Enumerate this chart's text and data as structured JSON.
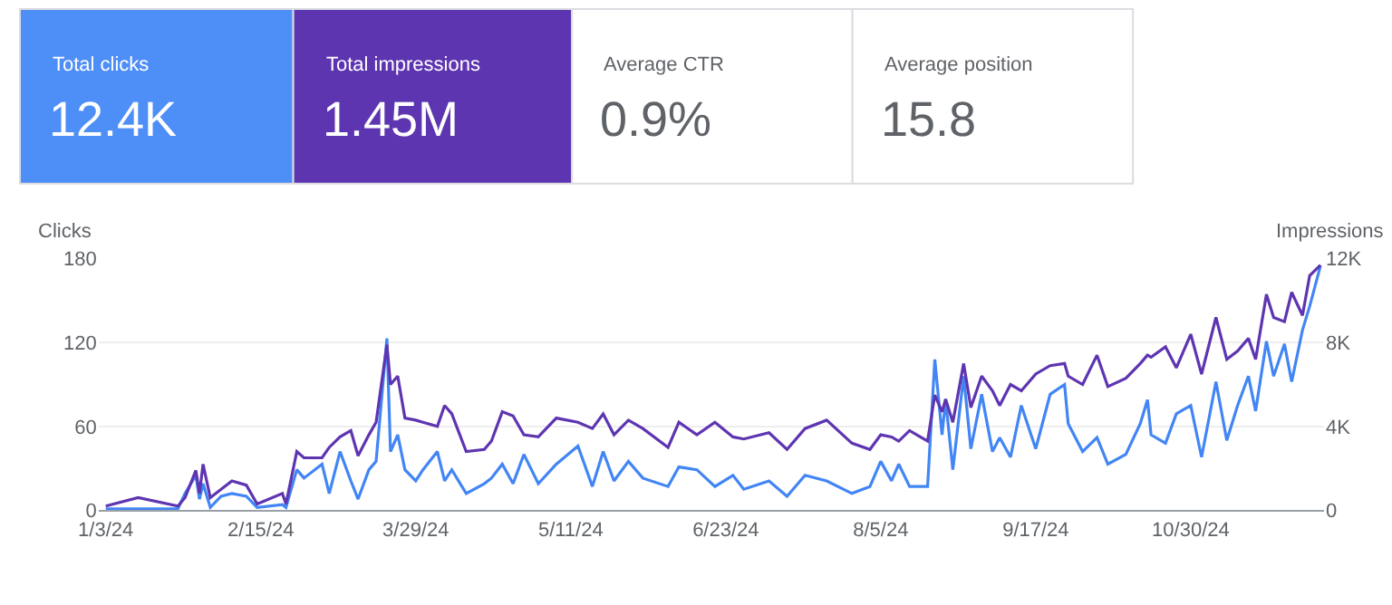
{
  "chart_data": [
    {
      "type": "other",
      "annotations": [
        "Total clicks",
        "12.4K",
        "Total impressions",
        "1.45M",
        "Average CTR",
        "0.9%",
        "Average position",
        "15.8"
      ]
    },
    {
      "type": "line",
      "ylabel": "Clicks",
      "y2label": "Impressions",
      "x": [
        "2024-01-03",
        "2024-01-12",
        "2024-01-23",
        "2024-01-25",
        "2024-01-28",
        "2024-01-29",
        "2024-01-30",
        "2024-02-01",
        "2024-02-04",
        "2024-02-07",
        "2024-02-11",
        "2024-02-14",
        "2024-02-21",
        "2024-02-22",
        "2024-02-25",
        "2024-02-27",
        "2024-03-03",
        "2024-03-05",
        "2024-03-08",
        "2024-03-11",
        "2024-03-13",
        "2024-03-16",
        "2024-03-18",
        "2024-03-21",
        "2024-03-22",
        "2024-03-24",
        "2024-03-26",
        "2024-03-29",
        "2024-03-31",
        "2024-04-04",
        "2024-04-06",
        "2024-04-08",
        "2024-04-12",
        "2024-04-17",
        "2024-04-19",
        "2024-04-22",
        "2024-04-25",
        "2024-04-28",
        "2024-05-02",
        "2024-05-07",
        "2024-05-13",
        "2024-05-17",
        "2024-05-20",
        "2024-05-23",
        "2024-05-27",
        "2024-05-31",
        "2024-06-07",
        "2024-06-10",
        "2024-06-15",
        "2024-06-20",
        "2024-06-25",
        "2024-06-28",
        "2024-07-05",
        "2024-07-10",
        "2024-07-15",
        "2024-07-21",
        "2024-07-28",
        "2024-08-02",
        "2024-08-05",
        "2024-08-08",
        "2024-08-10",
        "2024-08-13",
        "2024-08-18",
        "2024-08-20",
        "2024-08-22",
        "2024-08-23",
        "2024-08-25",
        "2024-08-28",
        "2024-08-30",
        "2024-09-02",
        "2024-09-05",
        "2024-09-07",
        "2024-09-10",
        "2024-09-13",
        "2024-09-17",
        "2024-09-21",
        "2024-09-25",
        "2024-09-26",
        "2024-09-30",
        "2024-10-04",
        "2024-10-07",
        "2024-10-12",
        "2024-10-16",
        "2024-10-18",
        "2024-10-19",
        "2024-10-23",
        "2024-10-26",
        "2024-10-30",
        "2024-11-02",
        "2024-11-06",
        "2024-11-09",
        "2024-11-12",
        "2024-11-15",
        "2024-11-17",
        "2024-11-20",
        "2024-11-22",
        "2024-11-25",
        "2024-11-27",
        "2024-11-30",
        "2024-12-02",
        "2024-12-05"
      ],
      "series": [
        {
          "color": "#4285f4",
          "values": [
            1,
            1,
            1,
            12,
            25,
            8,
            19,
            2,
            10,
            12,
            10,
            2,
            4,
            2,
            29,
            23,
            33,
            12,
            42,
            21,
            8,
            29,
            35,
            123,
            42,
            54,
            29,
            21,
            29,
            42,
            21,
            29,
            12,
            19,
            23,
            33,
            19,
            40,
            19,
            33,
            46,
            17,
            42,
            21,
            35,
            23,
            17,
            31,
            29,
            17,
            25,
            15,
            21,
            10,
            25,
            21,
            12,
            17,
            35,
            21,
            33,
            17,
            17,
            108,
            54,
            79,
            29,
            96,
            44,
            83,
            42,
            52,
            38,
            75,
            44,
            83,
            90,
            62,
            42,
            52,
            33,
            40,
            62,
            79,
            54,
            48,
            69,
            75,
            38,
            92,
            50,
            75,
            96,
            71,
            121,
            96,
            119,
            92,
            129,
            146,
            175
          ]
        },
        {
          "color": "#5e35b1",
          "axis": "y2",
          "values": [
            200,
            600,
            200,
            600,
            1900,
            800,
            2200,
            600,
            1000,
            1400,
            1200,
            300,
            800,
            300,
            2800,
            2500,
            2500,
            3000,
            3500,
            3800,
            2600,
            3600,
            4200,
            7900,
            6000,
            6400,
            4400,
            4300,
            4200,
            4000,
            5000,
            4600,
            2800,
            2900,
            3300,
            4700,
            4500,
            3600,
            3500,
            4400,
            4200,
            3900,
            4600,
            3600,
            4300,
            3900,
            3000,
            4200,
            3600,
            4200,
            3500,
            3400,
            3700,
            2900,
            3900,
            4300,
            3200,
            2900,
            3600,
            3500,
            3300,
            3800,
            3300,
            5500,
            4700,
            5300,
            4200,
            7000,
            4900,
            6400,
            5700,
            5000,
            6000,
            5700,
            6500,
            6900,
            7000,
            6400,
            6000,
            7400,
            5900,
            6300,
            7000,
            7400,
            7300,
            7800,
            6800,
            8400,
            6500,
            9200,
            7200,
            7600,
            8200,
            7200,
            10300,
            9200,
            9000,
            10400,
            9300,
            11200,
            11700
          ]
        }
      ],
      "xlim": [
        "2024-01-01",
        "2024-12-06"
      ],
      "xticks": [
        {
          "value": "2024-01-03",
          "label": "1/3/24"
        },
        {
          "value": "2024-02-15",
          "label": "2/15/24"
        },
        {
          "value": "2024-03-29",
          "label": "3/29/24"
        },
        {
          "value": "2024-05-11",
          "label": "5/11/24"
        },
        {
          "value": "2024-06-23",
          "label": "6/23/24"
        },
        {
          "value": "2024-08-05",
          "label": "8/5/24"
        },
        {
          "value": "2024-09-17",
          "label": "9/17/24"
        },
        {
          "value": "2024-10-30",
          "label": "10/30/24"
        }
      ],
      "ylim": [
        0,
        180
      ],
      "yticks": [
        0,
        60,
        120,
        180
      ],
      "y2lim": [
        0,
        12000
      ],
      "y2ticks": [
        {
          "value": 0,
          "label": "0"
        },
        {
          "value": 4000,
          "label": "4K"
        },
        {
          "value": 8000,
          "label": "8K"
        },
        {
          "value": 12000,
          "label": "12K"
        }
      ],
      "grid": "y",
      "marker": "none",
      "line_style": "solid"
    }
  ]
}
